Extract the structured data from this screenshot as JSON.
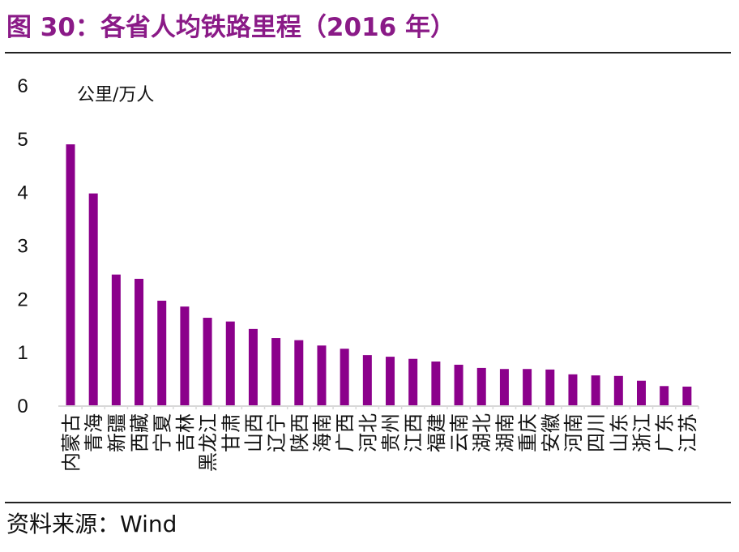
{
  "title": "图 30：各省人均铁路里程（2016 年）",
  "source": "资料来源：Wind",
  "chart_data": {
    "type": "bar",
    "title": "",
    "ylabel": "公里/万人",
    "xlabel": "",
    "ylim": [
      0,
      6
    ],
    "yticks": [
      0,
      1,
      2,
      3,
      4,
      5,
      6
    ],
    "grid": false,
    "bar_color": "#8b008b",
    "categories": [
      "内蒙古",
      "青海",
      "新疆",
      "西藏",
      "宁夏",
      "吉林",
      "黑龙江",
      "甘肃",
      "山西",
      "辽宁",
      "陕西",
      "海南",
      "广西",
      "河北",
      "贵州",
      "江西",
      "福建",
      "云南",
      "湖北",
      "湖南",
      "重庆",
      "安徽",
      "河南",
      "四川",
      "山东",
      "浙江",
      "广东",
      "江苏"
    ],
    "values": [
      4.89,
      3.97,
      2.45,
      2.37,
      1.96,
      1.85,
      1.64,
      1.57,
      1.43,
      1.26,
      1.22,
      1.12,
      1.06,
      0.94,
      0.91,
      0.87,
      0.82,
      0.76,
      0.7,
      0.68,
      0.68,
      0.67,
      0.58,
      0.56,
      0.55,
      0.46,
      0.36,
      0.35
    ]
  }
}
